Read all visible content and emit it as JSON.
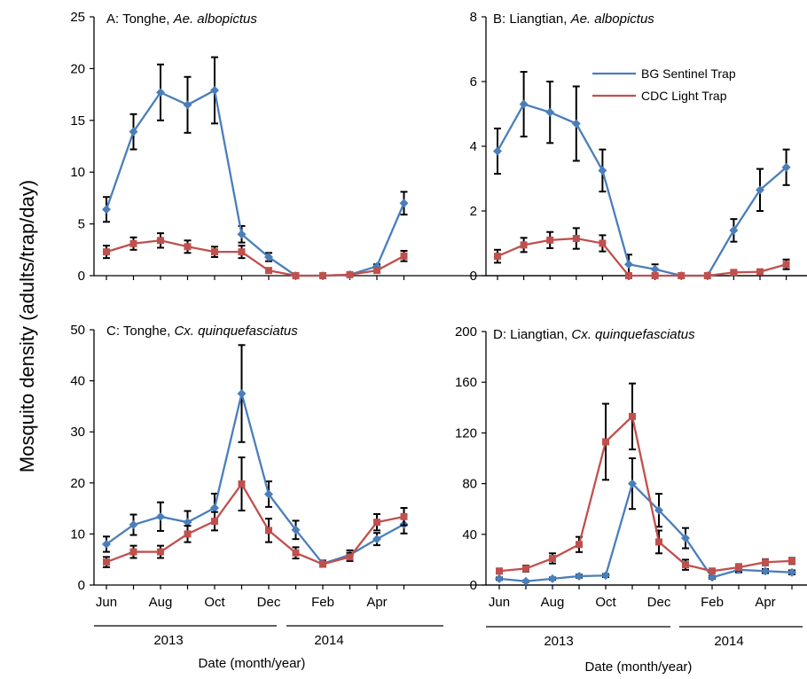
{
  "ylabel": "Mosquito density (adults/trap/day)",
  "xlabel": "Date (month/year)",
  "legend": [
    {
      "name": "BG Sentinel Trap",
      "color": "#4a7ebb",
      "marker": "diamond"
    },
    {
      "name": "CDC Light Trap",
      "color": "#c0504d",
      "marker": "square"
    }
  ],
  "year_labels": [
    "2013",
    "2014"
  ],
  "month_ticks": [
    "Jun",
    "Aug",
    "Oct",
    "Dec",
    "Feb",
    "Apr"
  ],
  "chart_data": [
    {
      "type": "line",
      "title_prefix": "A: Tonghe, ",
      "title_species": "Ae. albopictus",
      "ylim": [
        0,
        25
      ],
      "yticks": [
        0,
        5,
        10,
        15,
        20,
        25
      ],
      "series": [
        {
          "name": "BG Sentinel Trap",
          "values": [
            6.4,
            13.9,
            17.7,
            16.5,
            17.9,
            4.0,
            1.8,
            0,
            0,
            0.1,
            0.9,
            7.0
          ],
          "err": [
            1.2,
            1.7,
            2.7,
            2.7,
            3.2,
            0.8,
            0.4,
            0,
            0,
            0.1,
            0.2,
            1.1
          ]
        },
        {
          "name": "CDC Light Trap",
          "values": [
            2.3,
            3.1,
            3.4,
            2.8,
            2.3,
            2.3,
            0.5,
            0,
            0,
            0.1,
            0.5,
            1.9
          ],
          "err": [
            0.6,
            0.6,
            0.7,
            0.6,
            0.5,
            0.6,
            0.2,
            0,
            0,
            0.1,
            0.2,
            0.5
          ]
        }
      ]
    },
    {
      "type": "line",
      "title_prefix": "B: Liangtian, ",
      "title_species": "Ae. albopictus",
      "ylim": [
        0,
        8
      ],
      "yticks": [
        0,
        2,
        4,
        6,
        8
      ],
      "show_legend": true,
      "series": [
        {
          "name": "BG Sentinel Trap",
          "values": [
            3.85,
            5.3,
            5.05,
            4.7,
            3.25,
            0.35,
            0.2,
            0,
            0,
            1.4,
            2.65,
            3.35
          ],
          "err": [
            0.7,
            1.0,
            0.95,
            1.15,
            0.65,
            0.3,
            0.15,
            0,
            0,
            0.35,
            0.65,
            0.55
          ]
        },
        {
          "name": "CDC Light Trap",
          "values": [
            0.6,
            0.95,
            1.1,
            1.15,
            1.0,
            0,
            0,
            0,
            0,
            0.1,
            0.12,
            0.35
          ],
          "err": [
            0.2,
            0.22,
            0.25,
            0.32,
            0.25,
            0,
            0,
            0,
            0,
            0.05,
            0.05,
            0.15
          ]
        }
      ]
    },
    {
      "type": "line",
      "title_prefix": "C: Tonghe, ",
      "title_species": "Cx. quinquefasciatus",
      "ylim": [
        0,
        50
      ],
      "yticks": [
        0,
        10,
        20,
        30,
        40,
        50
      ],
      "series": [
        {
          "name": "BG Sentinel Trap",
          "values": [
            8.0,
            11.8,
            13.4,
            12.3,
            15.1,
            37.5,
            17.8,
            10.8,
            4.2,
            5.9,
            9.0,
            11.9
          ],
          "err": [
            1.5,
            2.0,
            2.8,
            2.2,
            2.8,
            9.5,
            2.5,
            1.8,
            0.6,
            0.9,
            1.2,
            1.8
          ]
        },
        {
          "name": "CDC Light Trap",
          "values": [
            4.5,
            6.5,
            6.5,
            10.0,
            12.5,
            19.8,
            10.7,
            6.3,
            4.1,
            5.5,
            12.3,
            13.4
          ],
          "err": [
            1.0,
            1.2,
            1.2,
            1.6,
            1.8,
            5.2,
            2.3,
            1.1,
            0.5,
            0.8,
            1.6,
            1.7
          ]
        }
      ]
    },
    {
      "type": "line",
      "title_prefix": "D: Liangtian, ",
      "title_species": "Cx. quinquefasciatus",
      "ylim": [
        0,
        200
      ],
      "yticks": [
        0,
        40,
        80,
        120,
        160,
        200
      ],
      "series": [
        {
          "name": "BG Sentinel Trap",
          "values": [
            5,
            3,
            5,
            7,
            7.5,
            80,
            59,
            37,
            6,
            12,
            11,
            10
          ],
          "err": [
            1,
            0.6,
            1,
            1.2,
            1.2,
            20,
            13,
            8,
            1,
            2,
            1.6,
            1.6
          ]
        },
        {
          "name": "CDC Light Trap",
          "values": [
            11,
            13,
            21,
            32,
            113,
            133,
            34,
            16,
            11,
            14,
            18,
            19
          ],
          "err": [
            2,
            2.4,
            4,
            6,
            30,
            26,
            9,
            4,
            2,
            2.4,
            2.4,
            2.4
          ]
        }
      ]
    }
  ]
}
